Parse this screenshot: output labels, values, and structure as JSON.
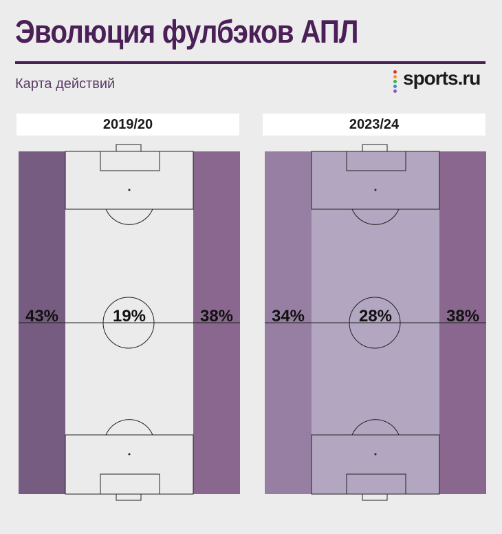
{
  "header": {
    "title": "Эволюция фулбэков АПЛ",
    "subtitle": "Карта действий",
    "logo_text": "sports.ru",
    "logo_dot_colors": [
      "#e0312d",
      "#f39a1e",
      "#3db04b",
      "#2c8fd6",
      "#8e59b8"
    ]
  },
  "chart_data": [
    {
      "type": "heatmap",
      "season": "2019/20",
      "zones": [
        {
          "zone": "left",
          "label": "43%",
          "value": 43,
          "color": "#775c82"
        },
        {
          "zone": "center",
          "label": "19%",
          "value": 19,
          "color": "#ebebeb"
        },
        {
          "zone": "right",
          "label": "38%",
          "value": 38,
          "color": "#8a678e"
        }
      ]
    },
    {
      "type": "heatmap",
      "season": "2023/24",
      "zones": [
        {
          "zone": "left",
          "label": "34%",
          "value": 34,
          "color": "#977fa3"
        },
        {
          "zone": "center",
          "label": "28%",
          "value": 28,
          "color": "#b2a6c1"
        },
        {
          "zone": "right",
          "label": "38%",
          "value": 38,
          "color": "#8a678e"
        }
      ]
    }
  ]
}
